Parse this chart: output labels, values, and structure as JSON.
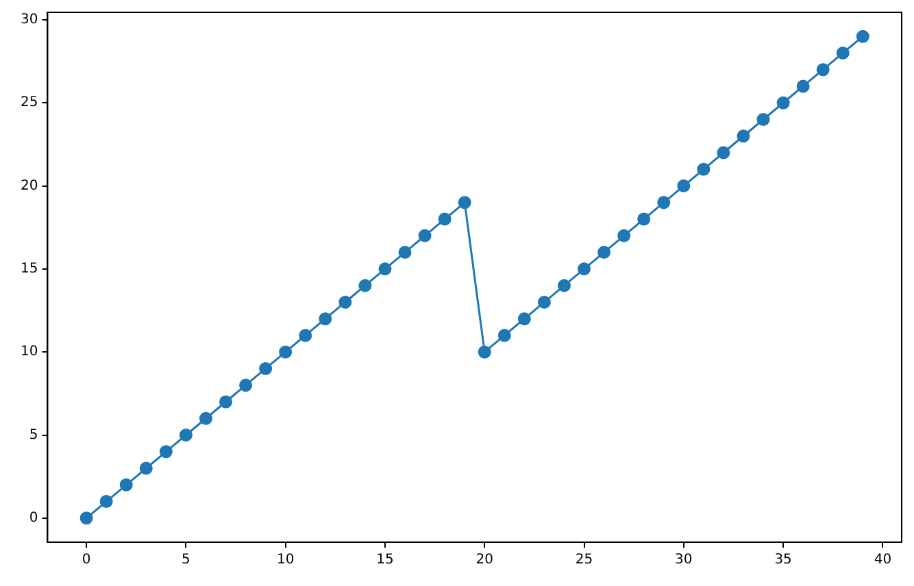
{
  "chart_data": {
    "type": "line",
    "x": [
      0,
      1,
      2,
      3,
      4,
      5,
      6,
      7,
      8,
      9,
      10,
      11,
      12,
      13,
      14,
      15,
      16,
      17,
      18,
      19,
      20,
      21,
      22,
      23,
      24,
      25,
      26,
      27,
      28,
      29,
      30,
      31,
      32,
      33,
      34,
      35,
      36,
      37,
      38,
      39
    ],
    "series": [
      {
        "color": "#1f77b4",
        "values": [
          0,
          1,
          2,
          3,
          4,
          5,
          6,
          7,
          8,
          9,
          10,
          11,
          12,
          13,
          14,
          15,
          16,
          17,
          18,
          19,
          10,
          11,
          12,
          13,
          14,
          15,
          16,
          17,
          18,
          19,
          20,
          21,
          22,
          23,
          24,
          25,
          26,
          27,
          28,
          29
        ]
      }
    ],
    "xlim": [
      -1.95,
      40.95
    ],
    "xticks": [
      0,
      5,
      10,
      15,
      20,
      25,
      30,
      35,
      40
    ],
    "ylim": [
      -1.45,
      30.45
    ],
    "yticks": [
      0,
      5,
      10,
      15,
      20,
      25,
      30
    ],
    "grid": false,
    "legend": false,
    "marker": "circle",
    "line_style": "solid"
  }
}
